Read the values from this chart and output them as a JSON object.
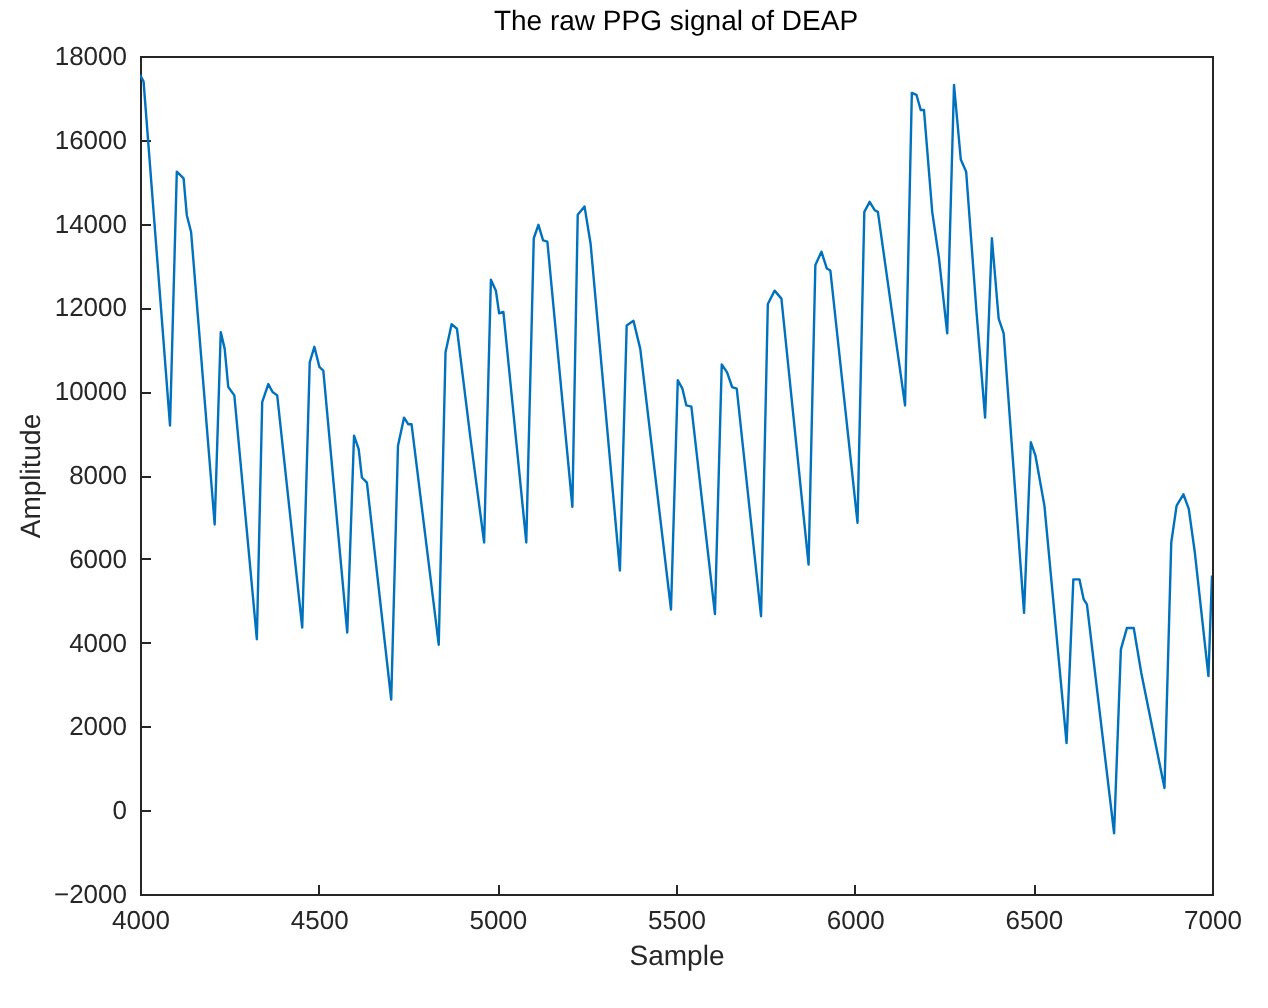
{
  "chart_data": {
    "type": "line",
    "title": "The raw PPG signal of DEAP",
    "xlabel": "Sample",
    "ylabel": "Amplitude",
    "xlim": [
      4000,
      7000
    ],
    "xticks": [
      4000,
      4500,
      5000,
      5500,
      6000,
      6500,
      7000
    ],
    "ylim": [
      -2000,
      18000
    ],
    "yticks": [
      -2000,
      0,
      2000,
      4000,
      6000,
      8000,
      10000,
      12000,
      14000,
      16000,
      18000
    ],
    "grid": false,
    "legend": false,
    "series": [
      {
        "color": "#0072bd",
        "x": [
          4000,
          4010,
          4084,
          4103,
          4122,
          4131,
          4143,
          4209,
          4226,
          4237,
          4247,
          4264,
          4327,
          4342,
          4359,
          4371,
          4384,
          4454,
          4475,
          4488,
          4502,
          4513,
          4580,
          4599,
          4612,
          4621,
          4635,
          4703,
          4722,
          4739,
          4751,
          4760,
          4836,
          4855,
          4872,
          4887,
          4925,
          4963,
          4982,
          4996,
          5005,
          5017,
          5081,
          5102,
          5115,
          5128,
          5140,
          5210,
          5225,
          5244,
          5261,
          5343,
          5362,
          5381,
          5400,
          5486,
          5505,
          5518,
          5529,
          5543,
          5609,
          5628,
          5643,
          5657,
          5670,
          5738,
          5757,
          5776,
          5795,
          5871,
          5890,
          5907,
          5922,
          5932,
          6008,
          6027,
          6042,
          6056,
          6065,
          6141,
          6160,
          6173,
          6185,
          6194,
          6217,
          6236,
          6259,
          6278,
          6297,
          6312,
          6341,
          6365,
          6384,
          6403,
          6417,
          6474,
          6493,
          6506,
          6531,
          6593,
          6612,
          6629,
          6641,
          6650,
          6726,
          6745,
          6762,
          6781,
          6802,
          6867,
          6886,
          6901,
          6920,
          6935,
          6952,
          6990,
          7000
        ],
        "values": [
          17550,
          17390,
          9180,
          15240,
          15080,
          14200,
          13800,
          6820,
          11410,
          11010,
          10100,
          9900,
          4080,
          9740,
          10170,
          9980,
          9900,
          4360,
          10690,
          11060,
          10580,
          10490,
          4240,
          8940,
          8620,
          7940,
          7820,
          2640,
          8700,
          9370,
          9210,
          9210,
          3950,
          10930,
          11600,
          11490,
          8860,
          6390,
          12660,
          12400,
          11860,
          11890,
          6390,
          13650,
          13970,
          13600,
          13570,
          7240,
          14210,
          14410,
          13520,
          5720,
          11570,
          11680,
          11010,
          4790,
          10260,
          10060,
          9660,
          9630,
          4680,
          10640,
          10450,
          10100,
          10060,
          4630,
          12080,
          12400,
          12210,
          5860,
          13010,
          13330,
          12930,
          12880,
          6860,
          14280,
          14520,
          14320,
          14280,
          9660,
          17120,
          17070,
          16710,
          16710,
          14280,
          13170,
          11380,
          17310,
          15530,
          15240,
          11890,
          9370,
          13650,
          11730,
          11380,
          4710,
          8780,
          8460,
          7270,
          1600,
          5510,
          5510,
          5030,
          4910,
          -550,
          3840,
          4350,
          4350,
          3280,
          530,
          6390,
          7270,
          7540,
          7190,
          6150,
          3200,
          5600
        ]
      }
    ]
  }
}
